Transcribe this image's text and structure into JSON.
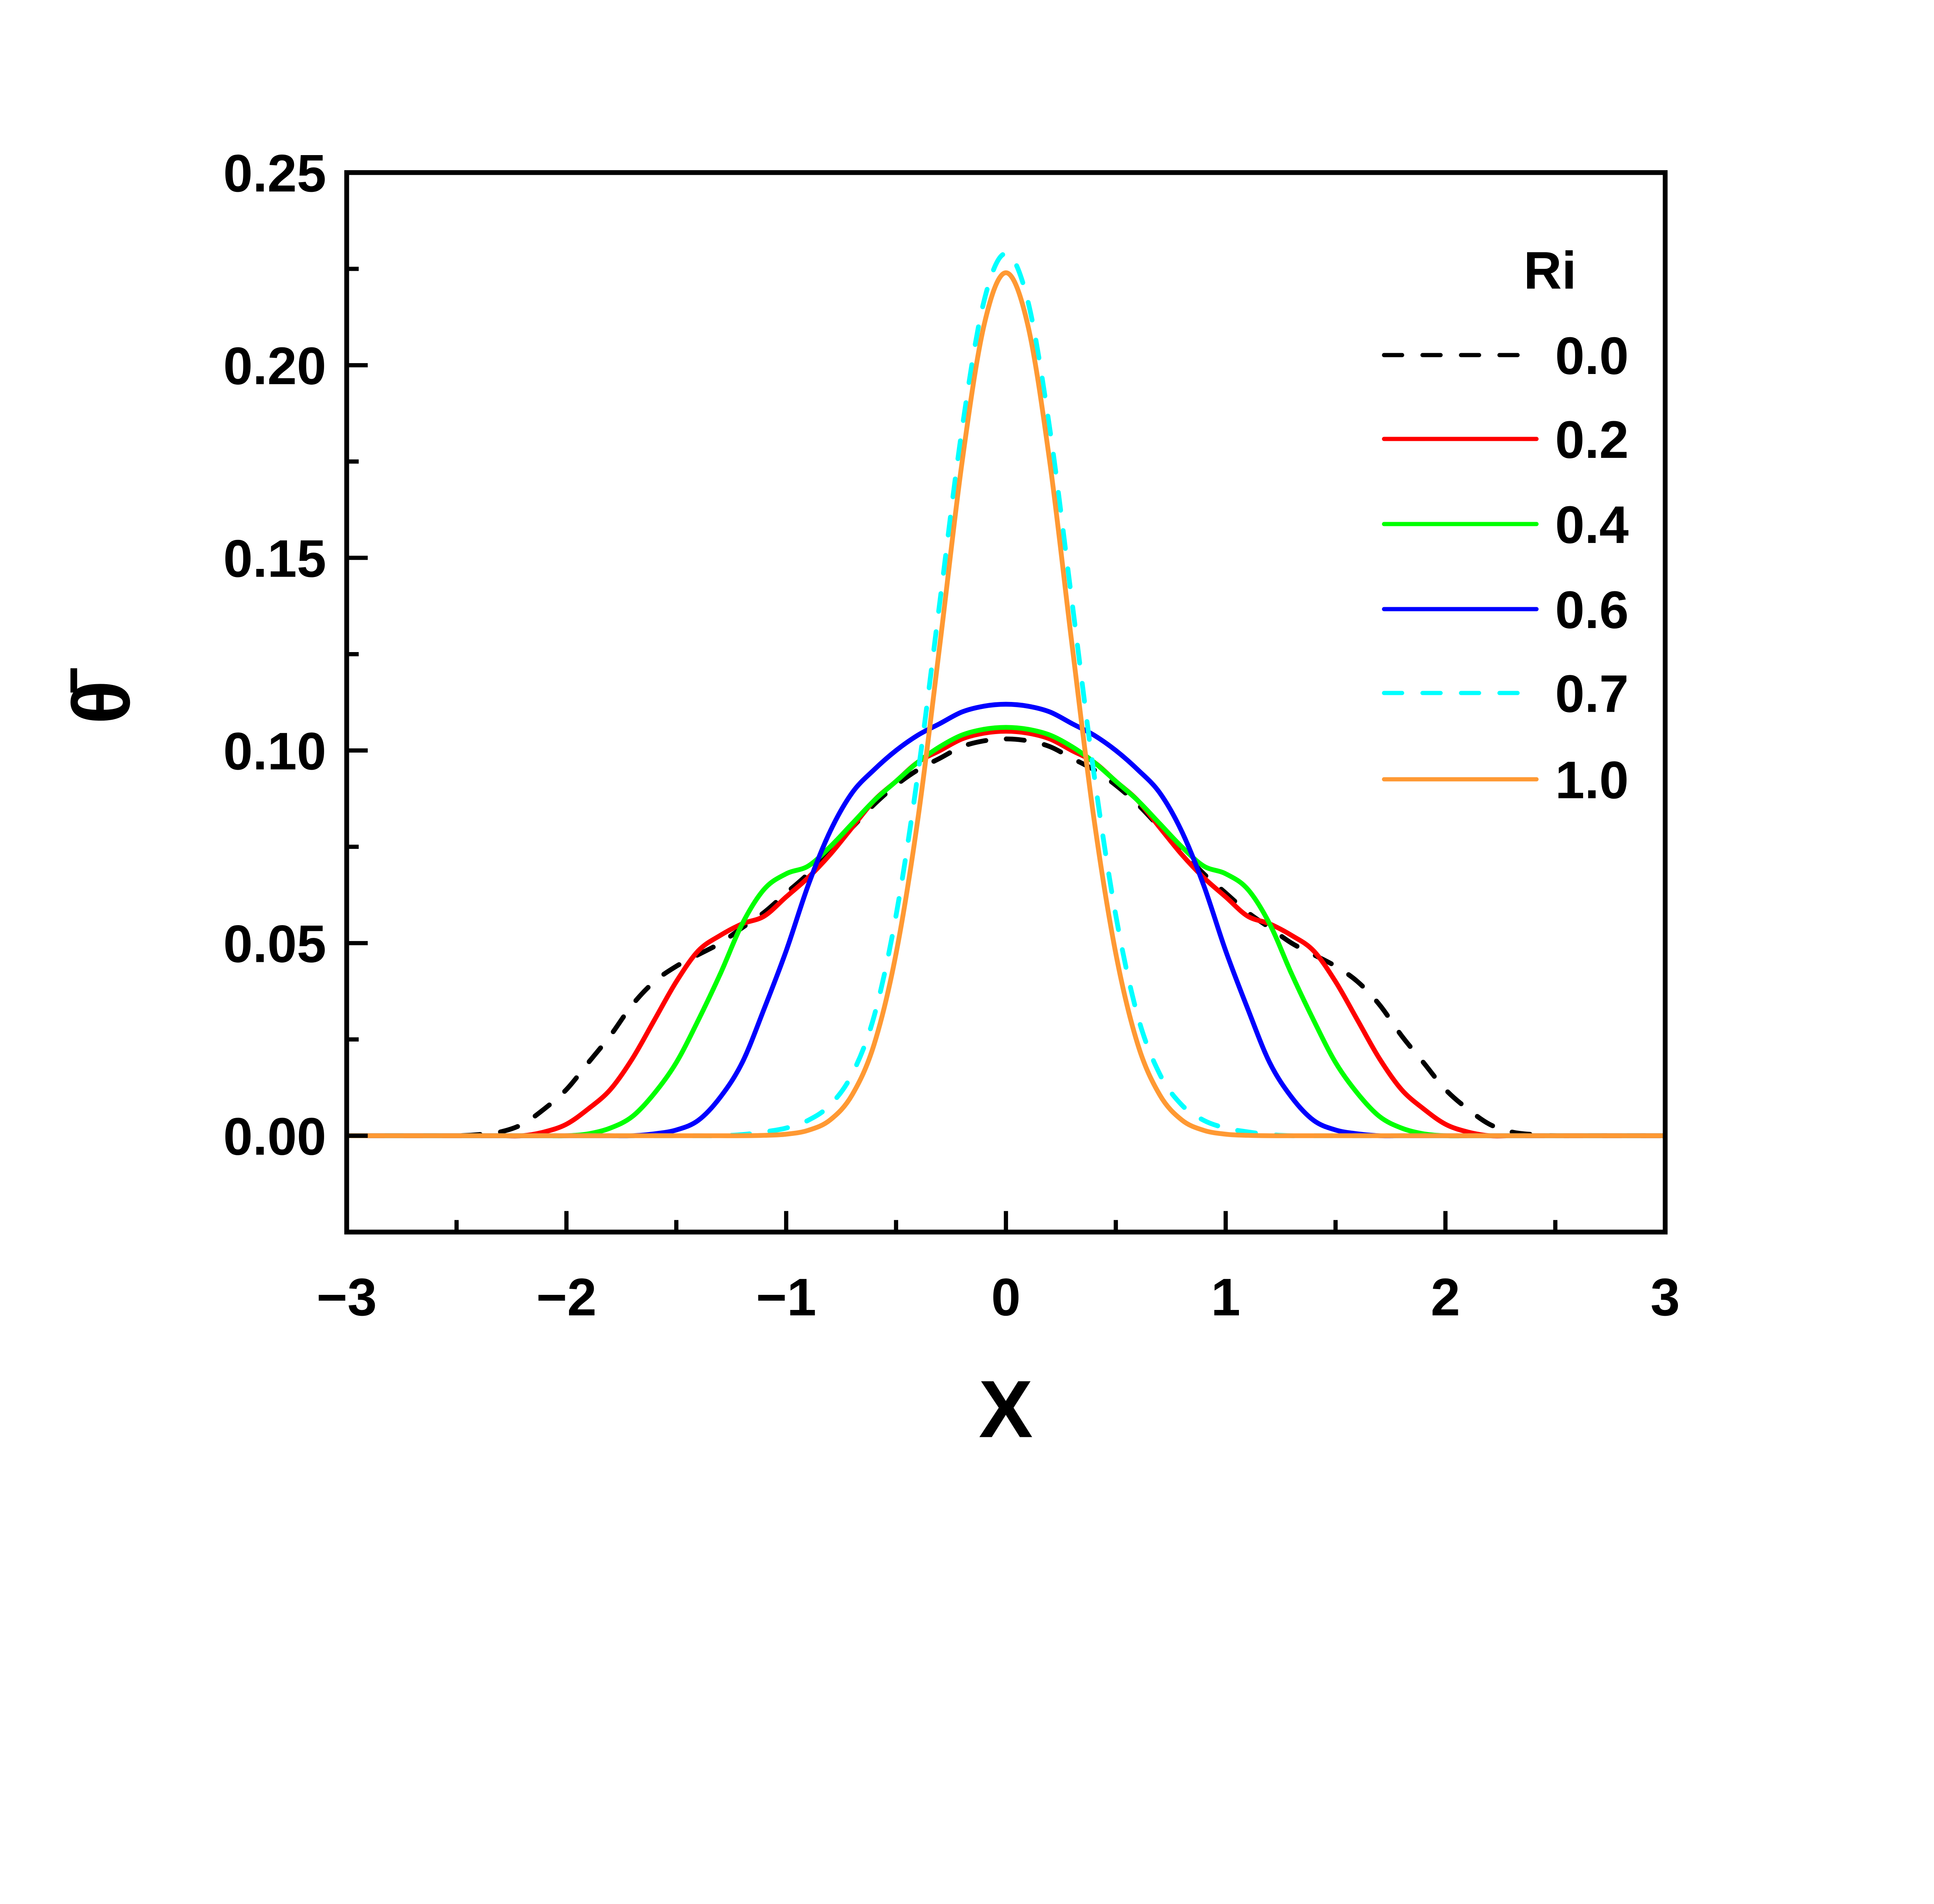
{
  "chart_data": {
    "type": "line",
    "title": "",
    "xlabel": "X",
    "ylabel": "θ̄",
    "xlim": [
      -3,
      3
    ],
    "ylim": [
      -0.025,
      0.25
    ],
    "xticks": [
      -3,
      -2,
      -1,
      0,
      1,
      2,
      3
    ],
    "xtick_labels": [
      "−3",
      "−2",
      "−1",
      "0",
      "1",
      "2",
      "3"
    ],
    "yticks": [
      0,
      0.05,
      0.1,
      0.15,
      0.2,
      0.25
    ],
    "ytick_labels": [
      "0.00",
      "0.05",
      "0.10",
      "0.15",
      "0.20",
      "0.25"
    ],
    "grid": false,
    "legend": {
      "title": "Ri",
      "position": "top-right"
    },
    "x": [
      -3,
      -2.9,
      -2.8,
      -2.7,
      -2.6,
      -2.5,
      -2.4,
      -2.3,
      -2.2,
      -2.1,
      -2,
      -1.9,
      -1.8,
      -1.7,
      -1.6,
      -1.5,
      -1.4,
      -1.3,
      -1.2,
      -1.1,
      -1,
      -0.9,
      -0.8,
      -0.7,
      -0.6,
      -0.5,
      -0.4,
      -0.3,
      -0.2,
      -0.1,
      0,
      0.1,
      0.2,
      0.3,
      0.4,
      0.5,
      0.6,
      0.7,
      0.8,
      0.9,
      1,
      1.1,
      1.2,
      1.3,
      1.4,
      1.5,
      1.6,
      1.7,
      1.8,
      1.9,
      2,
      2.1,
      2.2,
      2.3,
      2.4,
      2.5,
      2.6,
      2.7,
      2.8,
      2.9,
      3
    ],
    "series": [
      {
        "name": "0.0",
        "color": "#000000",
        "dashed": true,
        "values": [
          0,
          0,
          0,
          0,
          0,
          0,
          0.0003,
          0.001,
          0.003,
          0.007,
          0.012,
          0.019,
          0.026,
          0.034,
          0.04,
          0.044,
          0.047,
          0.05,
          0.054,
          0.058,
          0.063,
          0.068,
          0.074,
          0.08,
          0.086,
          0.091,
          0.095,
          0.098,
          0.101,
          0.1025,
          0.103,
          0.1025,
          0.101,
          0.098,
          0.095,
          0.091,
          0.086,
          0.08,
          0.074,
          0.068,
          0.063,
          0.058,
          0.054,
          0.05,
          0.047,
          0.044,
          0.04,
          0.034,
          0.026,
          0.019,
          0.012,
          0.007,
          0.003,
          0.001,
          0.0003,
          0,
          0,
          0,
          0,
          0,
          0
        ]
      },
      {
        "name": "0.2",
        "color": "#ff0000",
        "dashed": false,
        "values": [
          0,
          0,
          0,
          0,
          0,
          0,
          0,
          0,
          0,
          0.001,
          0.003,
          0.007,
          0.012,
          0.02,
          0.03,
          0.04,
          0.048,
          0.052,
          0.055,
          0.057,
          0.062,
          0.067,
          0.073,
          0.08,
          0.087,
          0.092,
          0.097,
          0.1,
          0.103,
          0.1045,
          0.105,
          0.1045,
          0.103,
          0.1,
          0.097,
          0.092,
          0.087,
          0.08,
          0.073,
          0.067,
          0.062,
          0.057,
          0.055,
          0.052,
          0.048,
          0.04,
          0.03,
          0.02,
          0.012,
          0.007,
          0.003,
          0.001,
          0,
          0,
          0,
          0,
          0,
          0,
          0,
          0,
          0
        ]
      },
      {
        "name": "0.4",
        "color": "#00ff00",
        "dashed": false,
        "values": [
          0,
          0,
          0,
          0,
          0,
          0,
          0,
          0,
          0,
          0,
          0,
          0.0005,
          0.002,
          0.005,
          0.011,
          0.019,
          0.03,
          0.042,
          0.055,
          0.064,
          0.068,
          0.07,
          0.075,
          0.081,
          0.087,
          0.092,
          0.097,
          0.101,
          0.104,
          0.1055,
          0.106,
          0.1055,
          0.104,
          0.101,
          0.097,
          0.092,
          0.087,
          0.081,
          0.075,
          0.07,
          0.068,
          0.064,
          0.055,
          0.042,
          0.03,
          0.019,
          0.011,
          0.005,
          0.002,
          0.0005,
          0,
          0,
          0,
          0,
          0,
          0,
          0,
          0,
          0,
          0,
          0
        ]
      },
      {
        "name": "0.6",
        "color": "#0000ff",
        "dashed": false,
        "values": [
          0,
          0,
          0,
          0,
          0,
          0,
          0,
          0,
          0,
          0,
          0,
          0,
          0,
          0,
          0.0005,
          0.0015,
          0.004,
          0.01,
          0.019,
          0.033,
          0.048,
          0.065,
          0.079,
          0.089,
          0.095,
          0.1,
          0.104,
          0.107,
          0.11,
          0.1115,
          0.112,
          0.1115,
          0.11,
          0.107,
          0.104,
          0.1,
          0.095,
          0.089,
          0.079,
          0.065,
          0.048,
          0.033,
          0.019,
          0.01,
          0.004,
          0.0015,
          0.0005,
          0,
          0,
          0,
          0,
          0,
          0,
          0,
          0,
          0,
          0,
          0,
          0,
          0,
          0
        ]
      },
      {
        "name": "0.7",
        "color": "#00ffff",
        "dashed": true,
        "values": [
          0,
          0,
          0,
          0,
          0,
          0,
          0,
          0,
          0,
          0,
          0,
          0,
          0,
          0,
          0,
          0,
          0,
          0,
          0.0003,
          0.001,
          0.002,
          0.004,
          0.008,
          0.016,
          0.031,
          0.0572,
          0.0942,
          0.1389,
          0.1833,
          0.2166,
          0.229,
          0.2166,
          0.1833,
          0.1389,
          0.0942,
          0.0572,
          0.031,
          0.016,
          0.008,
          0.004,
          0.002,
          0.001,
          0.0003,
          0,
          0,
          0,
          0,
          0,
          0,
          0,
          0,
          0,
          0,
          0,
          0,
          0,
          0,
          0,
          0,
          0,
          0
        ]
      },
      {
        "name": "1.0",
        "color": "#ff9933",
        "dashed": false,
        "values": [
          0,
          0,
          0,
          0,
          0,
          0,
          0,
          0,
          0,
          0,
          0,
          0,
          0,
          0,
          0,
          0,
          0,
          0,
          0,
          0.0001,
          0.0004,
          0.0014,
          0.0041,
          0.0106,
          0.0237,
          0.0473,
          0.0825,
          0.1278,
          0.1747,
          0.2103,
          0.224,
          0.2103,
          0.1747,
          0.1278,
          0.0825,
          0.0473,
          0.0237,
          0.0106,
          0.0041,
          0.0014,
          0.0004,
          0.0001,
          0,
          0,
          0,
          0,
          0,
          0,
          0,
          0,
          0,
          0,
          0,
          0,
          0,
          0,
          0,
          0,
          0,
          0,
          0
        ]
      }
    ]
  }
}
